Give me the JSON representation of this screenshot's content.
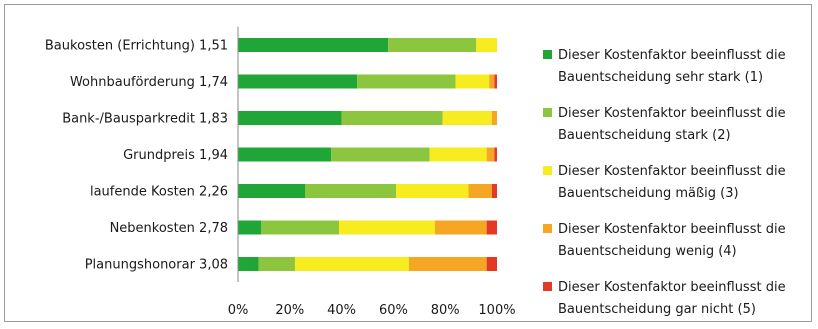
{
  "chart_data": {
    "type": "bar",
    "orientation": "horizontal",
    "stacked": "percent",
    "categories": [
      "Baukosten (Errichtung) 1,51",
      "Wohnbauförderung 1,74",
      "Bank-/Bausparkredit 1,83",
      "Grundpreis 1,94",
      "laufende Kosten 2,26",
      "Nebenkosten 2,78",
      "Planungshonorar 3,08"
    ],
    "series": [
      {
        "name": "Dieser Kostenfaktor beeinflusst die Bauentscheidung  sehr stark (1)",
        "legend_lines": [
          "Dieser Kostenfaktor beeinflusst die",
          "Bauentscheidung  sehr stark (1)"
        ],
        "color": "#1fa637",
        "values": [
          58,
          46,
          40,
          36,
          26,
          9,
          8
        ]
      },
      {
        "name": "Dieser Kostenfaktor beeinflusst die Bauentscheidung  stark (2)",
        "legend_lines": [
          "Dieser Kostenfaktor beeinflusst die",
          "Bauentscheidung  stark (2)"
        ],
        "color": "#8cc63f",
        "values": [
          34,
          38,
          39,
          38,
          35,
          30,
          14
        ]
      },
      {
        "name": "Dieser Kostenfaktor beeinflusst die Bauentscheidung  mäßig (3)",
        "legend_lines": [
          "Dieser Kostenfaktor beeinflusst die",
          "Bauentscheidung  mäßig (3)"
        ],
        "color": "#f7ec1f",
        "values": [
          8,
          13,
          19,
          22,
          28,
          37,
          44
        ]
      },
      {
        "name": "Dieser Kostenfaktor beeinflusst die Bauentscheidung  wenig (4)",
        "legend_lines": [
          "Dieser Kostenfaktor beeinflusst die",
          "Bauentscheidung  wenig (4)"
        ],
        "color": "#f5a623",
        "values": [
          0,
          2,
          2,
          3,
          9,
          20,
          30
        ]
      },
      {
        "name": "Dieser Kostenfaktor beeinflusst die Bauentscheidung  gar nicht (5)",
        "legend_lines": [
          "Dieser Kostenfaktor beeinflusst die",
          "Bauentscheidung  gar nicht (5)"
        ],
        "color": "#e23a27",
        "values": [
          0,
          1,
          0,
          1,
          2,
          4,
          4
        ]
      }
    ],
    "xlim": [
      0,
      100
    ],
    "xticks": [
      "0%",
      "20%",
      "40%",
      "60%",
      "80%",
      "100%"
    ],
    "grid": false,
    "legend_position": "right"
  }
}
